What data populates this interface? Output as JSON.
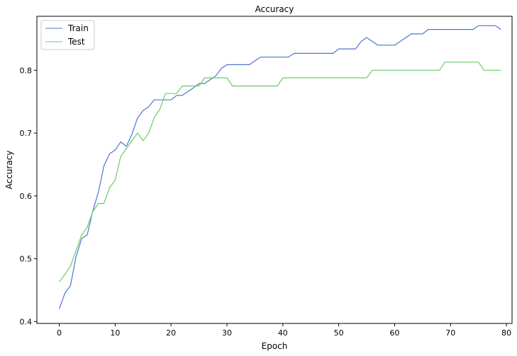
{
  "chart_data": {
    "type": "line",
    "title": "Accuracy",
    "xlabel": "Epoch",
    "ylabel": "Accuracy",
    "xlim": [
      -4,
      81
    ],
    "ylim": [
      0.397,
      0.886
    ],
    "xticks": [
      0,
      10,
      20,
      30,
      40,
      50,
      60,
      70,
      80
    ],
    "yticks": [
      0.4,
      0.5,
      0.6,
      0.7,
      0.8
    ],
    "x": [
      0,
      1,
      2,
      3,
      4,
      5,
      6,
      7,
      8,
      9,
      10,
      11,
      12,
      13,
      14,
      15,
      16,
      17,
      18,
      19,
      20,
      21,
      22,
      23,
      24,
      25,
      26,
      27,
      28,
      29,
      30,
      31,
      32,
      33,
      34,
      35,
      36,
      37,
      38,
      39,
      40,
      41,
      42,
      43,
      44,
      45,
      46,
      47,
      48,
      49,
      50,
      51,
      52,
      53,
      54,
      55,
      56,
      57,
      58,
      59,
      60,
      61,
      62,
      63,
      64,
      65,
      66,
      67,
      68,
      69,
      70,
      71,
      72,
      73,
      74,
      75,
      76,
      77,
      78,
      79
    ],
    "grid": false,
    "legend_position": "upper-left",
    "series": [
      {
        "name": "Train",
        "color": "#4878cf",
        "values": [
          0.42,
          0.445,
          0.457,
          0.503,
          0.532,
          0.538,
          0.576,
          0.606,
          0.648,
          0.667,
          0.673,
          0.686,
          0.679,
          0.698,
          0.724,
          0.736,
          0.742,
          0.753,
          0.753,
          0.753,
          0.753,
          0.76,
          0.76,
          0.766,
          0.772,
          0.779,
          0.779,
          0.785,
          0.791,
          0.803,
          0.809,
          0.809,
          0.809,
          0.809,
          0.809,
          0.815,
          0.821,
          0.821,
          0.821,
          0.821,
          0.821,
          0.821,
          0.827,
          0.827,
          0.827,
          0.827,
          0.827,
          0.827,
          0.827,
          0.827,
          0.834,
          0.834,
          0.834,
          0.834,
          0.846,
          0.852,
          0.846,
          0.84,
          0.84,
          0.84,
          0.84,
          0.846,
          0.852,
          0.858,
          0.858,
          0.858,
          0.865,
          0.865,
          0.865,
          0.865,
          0.865,
          0.865,
          0.865,
          0.865,
          0.865,
          0.871,
          0.871,
          0.871,
          0.871,
          0.865
        ]
      },
      {
        "name": "Test",
        "color": "#6acc65",
        "values": [
          0.463,
          0.475,
          0.488,
          0.513,
          0.538,
          0.55,
          0.575,
          0.588,
          0.588,
          0.613,
          0.625,
          0.663,
          0.675,
          0.688,
          0.7,
          0.688,
          0.7,
          0.725,
          0.738,
          0.763,
          0.763,
          0.763,
          0.775,
          0.775,
          0.775,
          0.775,
          0.788,
          0.788,
          0.788,
          0.788,
          0.788,
          0.775,
          0.775,
          0.775,
          0.775,
          0.775,
          0.775,
          0.775,
          0.775,
          0.775,
          0.788,
          0.788,
          0.788,
          0.788,
          0.788,
          0.788,
          0.788,
          0.788,
          0.788,
          0.788,
          0.788,
          0.788,
          0.788,
          0.788,
          0.788,
          0.788,
          0.8,
          0.8,
          0.8,
          0.8,
          0.8,
          0.8,
          0.8,
          0.8,
          0.8,
          0.8,
          0.8,
          0.8,
          0.8,
          0.813,
          0.813,
          0.813,
          0.813,
          0.813,
          0.813,
          0.813,
          0.8,
          0.8,
          0.8,
          0.8
        ]
      }
    ]
  }
}
